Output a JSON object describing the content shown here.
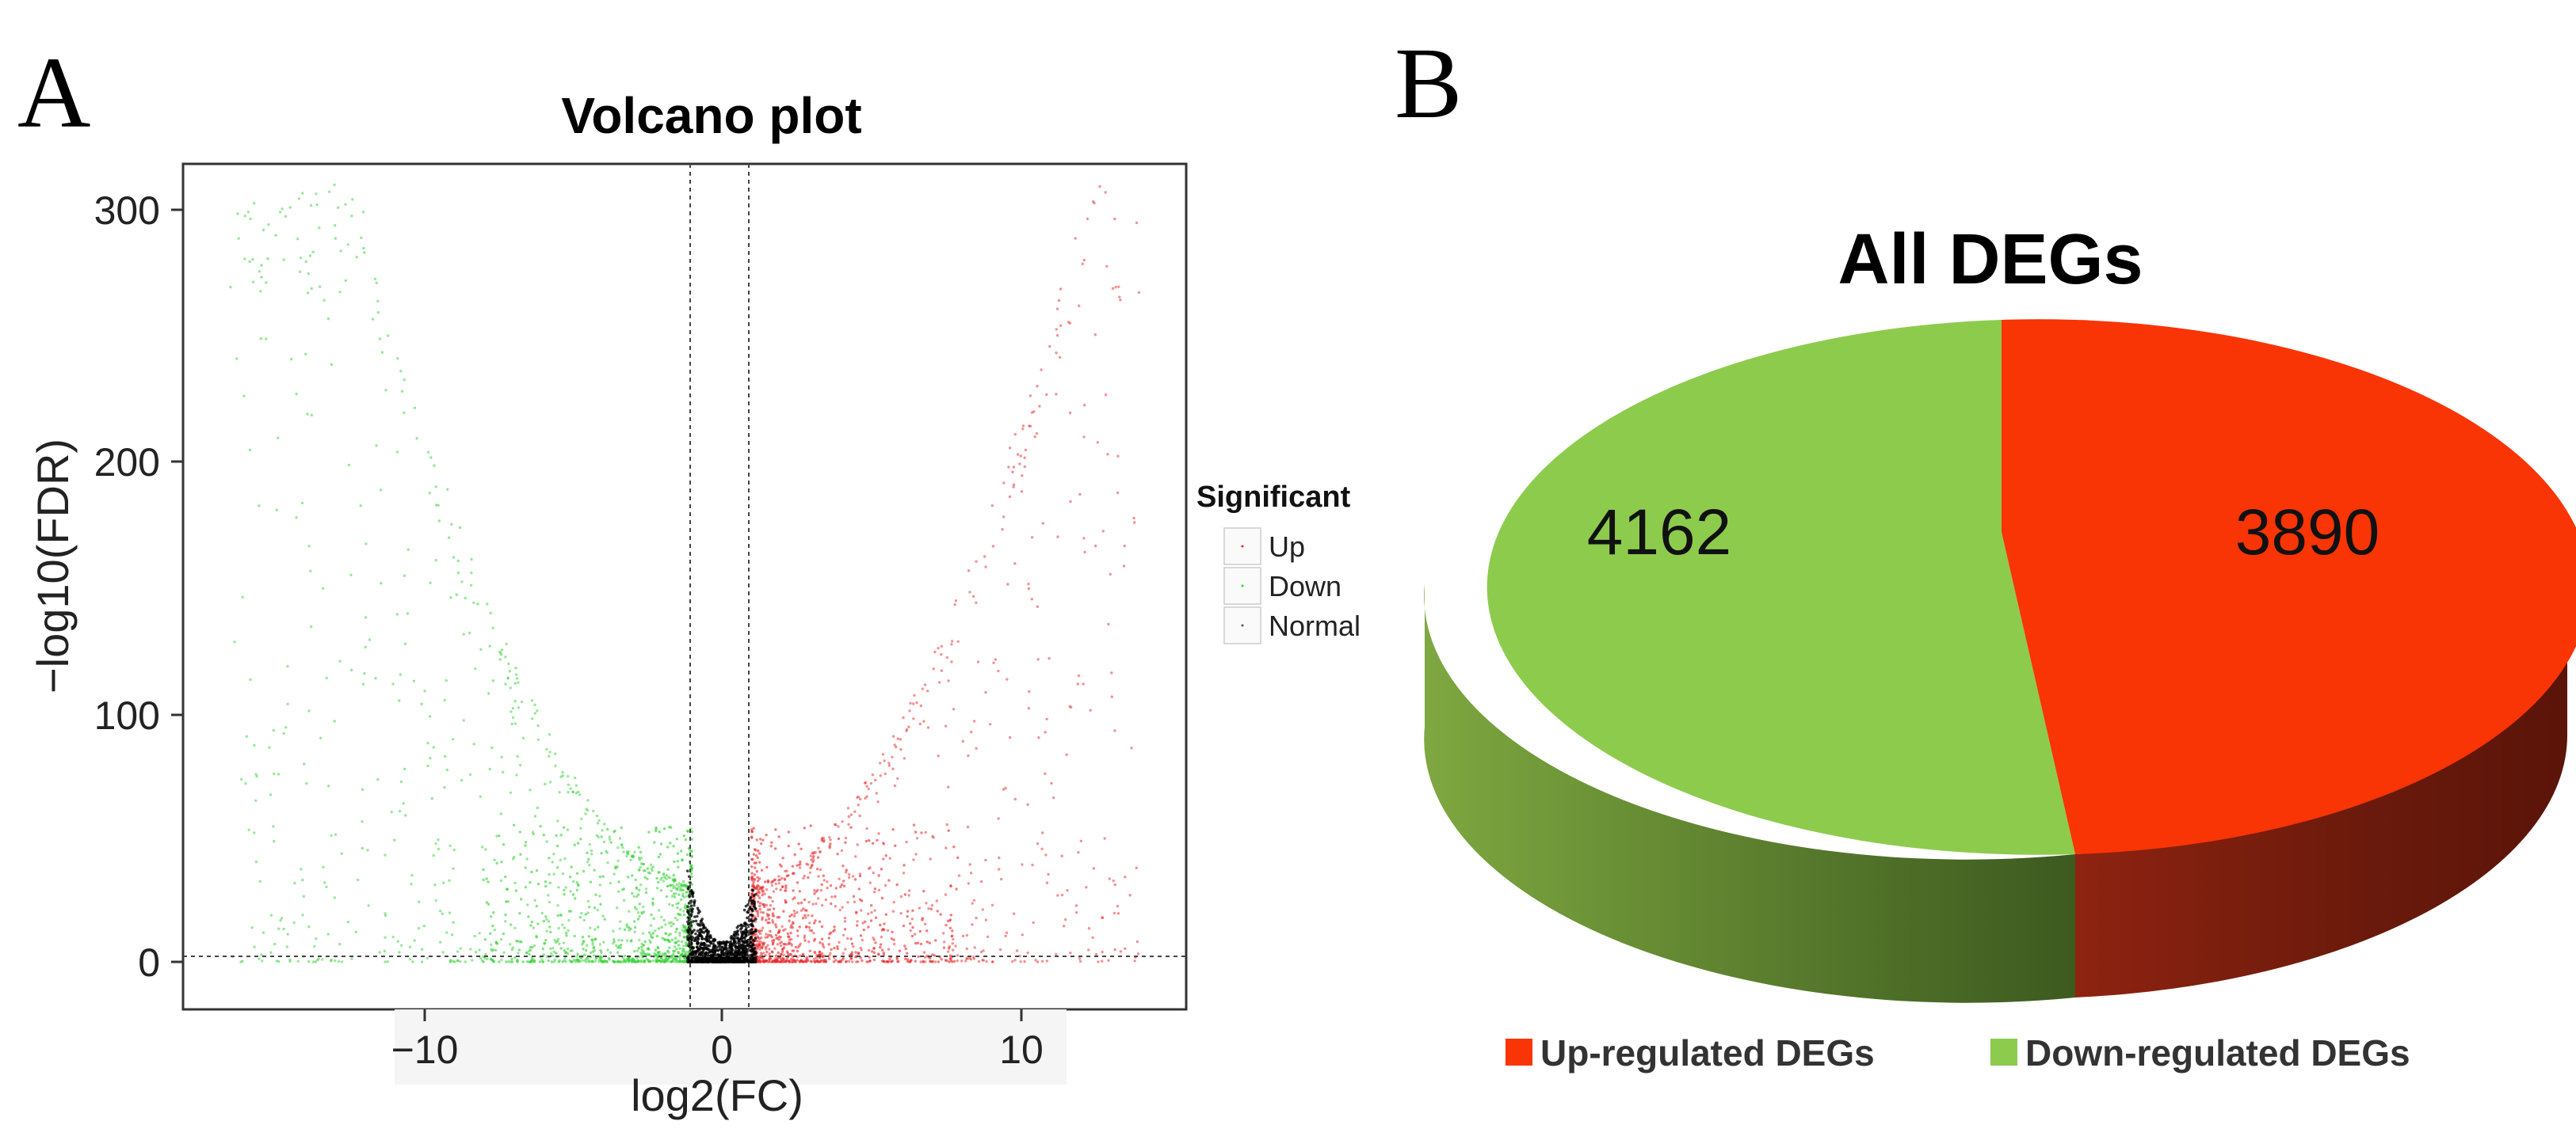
{
  "panel_a": {
    "letter": "A",
    "title": "Volcano plot",
    "xlabel": "log2(FC)",
    "ylabel": "−log10(FDR)",
    "xticks": [
      "−10",
      "0",
      "10"
    ],
    "yticks": [
      "0",
      "100",
      "200",
      "300"
    ],
    "legend": {
      "title": "Significant",
      "items": [
        "Up",
        "Down",
        "Normal"
      ]
    }
  },
  "panel_b": {
    "letter": "B",
    "title": "All DEGs",
    "slice_labels": [
      "3890",
      "4162"
    ],
    "legend": [
      "Up-regulated DEGs",
      "Down-regulated DEGs"
    ]
  },
  "colors": {
    "up": "#e8262a",
    "down": "#33d033",
    "normal": "#000000",
    "pie_up": "#f93405",
    "pie_down": "#8dcb4d"
  },
  "chart_data": [
    {
      "type": "scatter",
      "title": "Volcano plot",
      "xlabel": "log2(FC)",
      "ylabel": "−log10(FDR)",
      "xlim": [
        -18,
        16
      ],
      "ylim": [
        -15,
        320
      ],
      "thresholds": {
        "log2fc": [
          -1,
          1
        ],
        "neg_log10_fdr": 1.3
      },
      "grid": false,
      "legend_position": "right",
      "series": [
        {
          "name": "Up",
          "color": "#e8262a",
          "description_points": "log2FC > 1, spread up to ~14, -log10(FDR) up to ~300"
        },
        {
          "name": "Down",
          "color": "#33d033",
          "description_points": "log2FC < -1, spread down to ~-17, -log10(FDR) up to ~300"
        },
        {
          "name": "Normal",
          "color": "#000000",
          "description_points": "|log2FC| < 1, low -log10(FDR)"
        }
      ]
    },
    {
      "type": "pie",
      "title": "All DEGs",
      "categories": [
        "Up-regulated DEGs",
        "Down-regulated DEGs"
      ],
      "values": [
        3890,
        4162
      ],
      "legend_position": "bottom"
    }
  ]
}
